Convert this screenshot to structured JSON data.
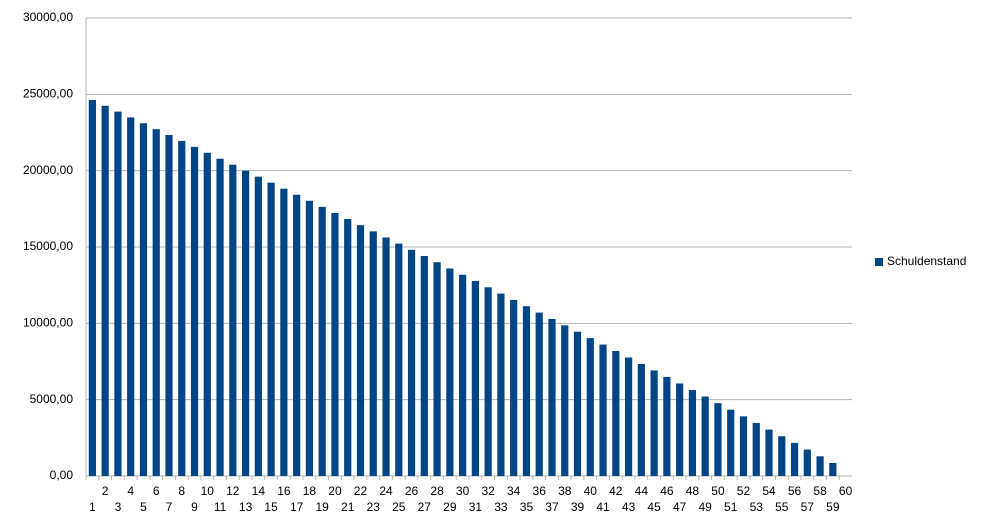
{
  "chart_data": {
    "type": "bar",
    "categories": [
      "1",
      "2",
      "3",
      "4",
      "5",
      "6",
      "7",
      "8",
      "9",
      "10",
      "11",
      "12",
      "13",
      "14",
      "15",
      "16",
      "17",
      "18",
      "19",
      "20",
      "21",
      "22",
      "23",
      "24",
      "25",
      "26",
      "27",
      "28",
      "29",
      "30",
      "31",
      "32",
      "33",
      "34",
      "35",
      "36",
      "37",
      "38",
      "39",
      "40",
      "41",
      "42",
      "43",
      "44",
      "45",
      "46",
      "47",
      "48",
      "49",
      "50",
      "51",
      "52",
      "53",
      "54",
      "55",
      "56",
      "57",
      "58",
      "59",
      "60"
    ],
    "series": [
      {
        "name": "Schuldenstand",
        "color": "#004586",
        "values": [
          24630,
          24250,
          23869,
          23487,
          23104,
          22719,
          22334,
          21948,
          21561,
          21172,
          20783,
          20392,
          20001,
          19608,
          19214,
          18820,
          18424,
          18027,
          17629,
          17230,
          16830,
          16429,
          16027,
          15624,
          15220,
          14814,
          14408,
          14001,
          13592,
          13183,
          12772,
          12361,
          11948,
          11534,
          11120,
          10704,
          10287,
          9869,
          9450,
          9030,
          8609,
          8187,
          7764,
          7340,
          6914,
          6488,
          6061,
          5632,
          5203,
          4772,
          4341,
          3908,
          3474,
          3040,
          2604,
          2167,
          1729,
          1290,
          850,
          null
        ]
      }
    ],
    "ylim": [
      0,
      30000
    ],
    "yticks": [
      {
        "value": 0,
        "label": "0,00"
      },
      {
        "value": 5000,
        "label": "5000,00"
      },
      {
        "value": 10000,
        "label": "10000,00"
      },
      {
        "value": 15000,
        "label": "15000,00"
      },
      {
        "value": 20000,
        "label": "20000,00"
      },
      {
        "value": 25000,
        "label": "25000,00"
      },
      {
        "value": 30000,
        "label": "30000,00"
      }
    ],
    "grid": true,
    "legend": "right"
  }
}
